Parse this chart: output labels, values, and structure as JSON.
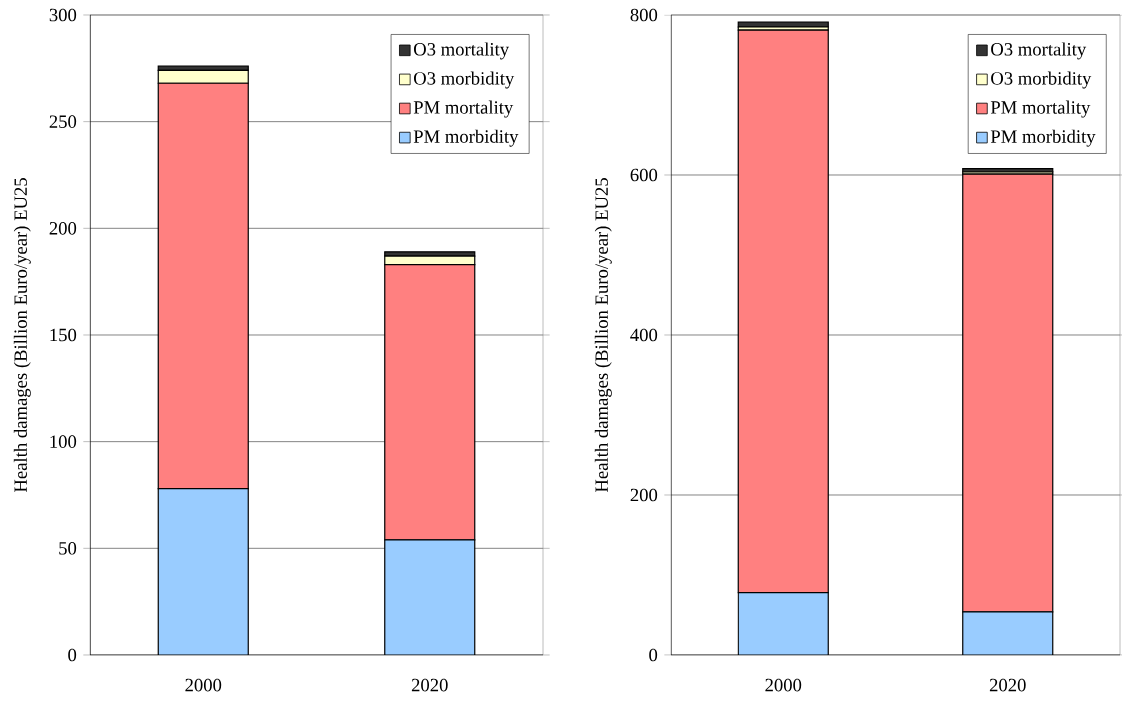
{
  "chart_data": [
    {
      "type": "bar",
      "stacked": true,
      "categories": [
        "2000",
        "2020"
      ],
      "ylabel": "Health damages (Billion Euro/year) EU25",
      "ylim": [
        0,
        300
      ],
      "yticks": [
        0,
        50,
        100,
        150,
        200,
        250,
        300
      ],
      "grid": "y",
      "legend": "top right",
      "series": [
        {
          "name": "PM morbidity",
          "color": "#99ccff",
          "values": [
            78,
            54
          ]
        },
        {
          "name": "PM mortality",
          "color": "#ff8080",
          "values": [
            190,
            129
          ]
        },
        {
          "name": "O3 morbidity",
          "color": "#ffffcc",
          "values": [
            6,
            4
          ]
        },
        {
          "name": "O3 mortality",
          "color": "#333333",
          "values": [
            2,
            2
          ]
        }
      ]
    },
    {
      "type": "bar",
      "stacked": true,
      "categories": [
        "2000",
        "2020"
      ],
      "ylabel": "Health damages (Billion Euro/year) EU25",
      "ylim": [
        0,
        800
      ],
      "yticks": [
        0,
        200,
        400,
        600,
        800
      ],
      "grid": "y",
      "legend": "top right",
      "series": [
        {
          "name": "PM morbidity",
          "color": "#99ccff",
          "values": [
            78,
            54
          ]
        },
        {
          "name": "PM mortality",
          "color": "#ff8080",
          "values": [
            703,
            547
          ]
        },
        {
          "name": "O3 morbidity",
          "color": "#ffffcc",
          "values": [
            4,
            3
          ]
        },
        {
          "name": "O3 mortality",
          "color": "#333333",
          "values": [
            6,
            4
          ]
        }
      ]
    }
  ]
}
